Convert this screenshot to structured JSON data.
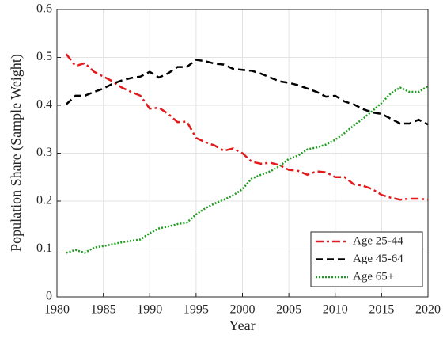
{
  "chart_data": {
    "type": "line",
    "xlabel": "Year",
    "ylabel": "Population Share (Sample Weight)",
    "x": [
      1981,
      1982,
      1983,
      1984,
      1985,
      1986,
      1987,
      1988,
      1989,
      1990,
      1991,
      1992,
      1993,
      1994,
      1995,
      1996,
      1997,
      1998,
      1999,
      2000,
      2001,
      2002,
      2003,
      2004,
      2005,
      2006,
      2007,
      2008,
      2009,
      2010,
      2011,
      2012,
      2013,
      2014,
      2015,
      2016,
      2017,
      2018,
      2019,
      2020
    ],
    "series": [
      {
        "name": "Age 25-44",
        "color": "#e31a1c",
        "linestyle": "dashdot",
        "values": [
          0.507,
          0.482,
          0.488,
          0.47,
          0.46,
          0.45,
          0.437,
          0.428,
          0.42,
          0.393,
          0.395,
          0.382,
          0.365,
          0.366,
          0.332,
          0.323,
          0.316,
          0.305,
          0.31,
          0.3,
          0.282,
          0.278,
          0.28,
          0.275,
          0.265,
          0.263,
          0.255,
          0.262,
          0.26,
          0.25,
          0.25,
          0.235,
          0.232,
          0.225,
          0.213,
          0.207,
          0.203,
          0.205,
          0.205,
          0.203
        ]
      },
      {
        "name": "Age 45-64",
        "color": "#000000",
        "linestyle": "dash",
        "values": [
          0.402,
          0.42,
          0.42,
          0.428,
          0.435,
          0.445,
          0.452,
          0.457,
          0.46,
          0.47,
          0.458,
          0.467,
          0.48,
          0.48,
          0.495,
          0.492,
          0.487,
          0.485,
          0.476,
          0.474,
          0.472,
          0.466,
          0.458,
          0.45,
          0.447,
          0.442,
          0.435,
          0.428,
          0.418,
          0.42,
          0.408,
          0.402,
          0.392,
          0.385,
          0.382,
          0.372,
          0.362,
          0.362,
          0.37,
          0.36
        ]
      },
      {
        "name": "Age 65+",
        "color": "#1e9e1e",
        "linestyle": "dot",
        "values": [
          0.092,
          0.098,
          0.092,
          0.103,
          0.106,
          0.11,
          0.114,
          0.117,
          0.12,
          0.133,
          0.143,
          0.147,
          0.152,
          0.155,
          0.172,
          0.185,
          0.195,
          0.203,
          0.212,
          0.225,
          0.247,
          0.255,
          0.262,
          0.273,
          0.288,
          0.295,
          0.308,
          0.312,
          0.318,
          0.328,
          0.342,
          0.358,
          0.372,
          0.388,
          0.405,
          0.425,
          0.437,
          0.428,
          0.428,
          0.44
        ]
      }
    ],
    "xlim": [
      1980,
      2020
    ],
    "xticks": [
      1980,
      1985,
      1990,
      1995,
      2000,
      2005,
      2010,
      2015,
      2020
    ],
    "ylim": [
      0,
      0.6
    ],
    "yticks": [
      0,
      0.1,
      0.2,
      0.3,
      0.4,
      0.5,
      0.6
    ],
    "grid": true,
    "legend": "lower right"
  }
}
